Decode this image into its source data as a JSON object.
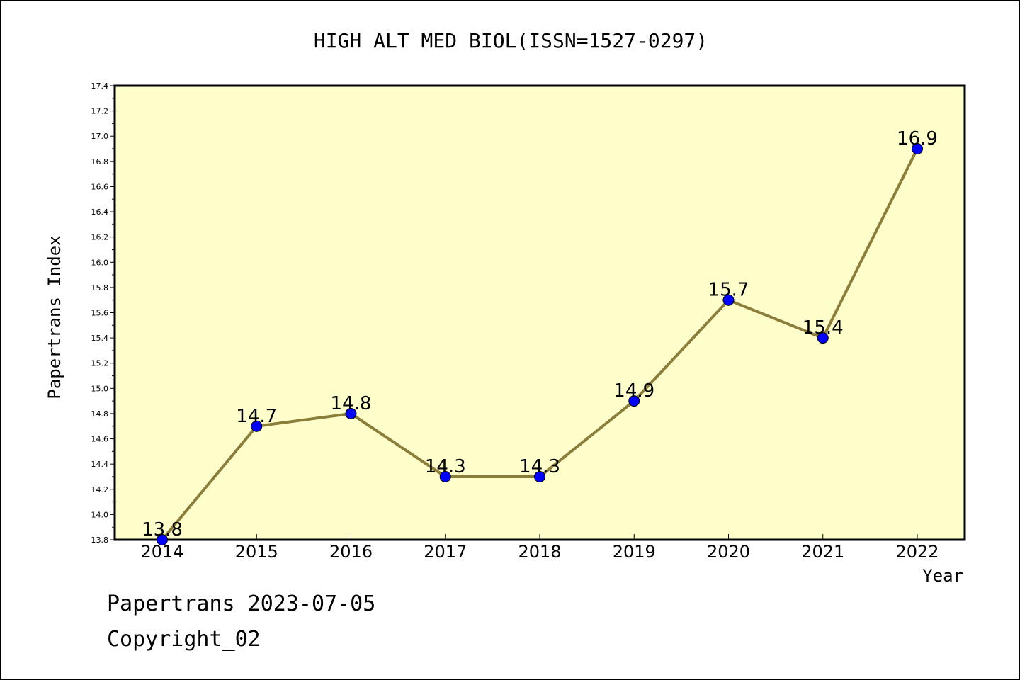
{
  "chart_data": {
    "type": "line",
    "title": "HIGH ALT MED BIOL(ISSN=1527-0297)",
    "xlabel": "Year",
    "ylabel": "Papertrans Index",
    "categories": [
      "2014",
      "2015",
      "2016",
      "2017",
      "2018",
      "2019",
      "2020",
      "2021",
      "2022"
    ],
    "values": [
      13.8,
      14.7,
      14.8,
      14.3,
      14.3,
      14.9,
      15.7,
      15.4,
      16.9
    ],
    "data_labels": [
      "13.8",
      "14.7",
      "14.8",
      "14.3",
      "14.3",
      "14.9",
      "15.7",
      "15.4",
      "16.9"
    ],
    "ylim": [
      13.8,
      17.4
    ],
    "yticks": [
      "13.8",
      "14.0",
      "14.2",
      "14.4",
      "14.6",
      "14.8",
      "15.0",
      "15.2",
      "15.4",
      "15.6",
      "15.8",
      "16.0",
      "16.2",
      "16.4",
      "16.6",
      "16.8",
      "17.0",
      "17.2",
      "17.4"
    ],
    "grid": false,
    "colors": {
      "plot_background": "#ffffcc",
      "line": "#8b7d3a",
      "marker": "#0000ff",
      "frame": "#000000"
    }
  },
  "footer": {
    "line1": "Papertrans 2023-07-05",
    "line2": "Copyright_02"
  }
}
